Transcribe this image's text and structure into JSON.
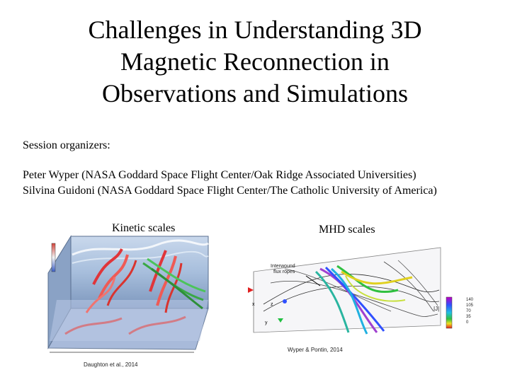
{
  "slide": {
    "title_lines": [
      "Challenges in Understanding 3D",
      "Magnetic Reconnection in",
      "Observations and Simulations"
    ],
    "organizers_label": "Session organizers:",
    "organizers": [
      "Peter Wyper (NASA Goddard Space Flight Center/Oak Ridge Associated Universities)",
      "Silvina Guidoni (NASA Goddard Space Flight Center/The Catholic University of America)"
    ]
  },
  "figures": {
    "kinetic": {
      "caption": "Kinetic scales",
      "credit": "Daughton et al., 2014"
    },
    "mhd": {
      "caption": "MHD scales",
      "credit": "Wyper & Pontin, 2014",
      "annotation": "Interwound flux ropes",
      "colorbar_label": "|J|",
      "colorbar_ticks": [
        "140",
        "105",
        "70",
        "35",
        "0"
      ]
    }
  }
}
